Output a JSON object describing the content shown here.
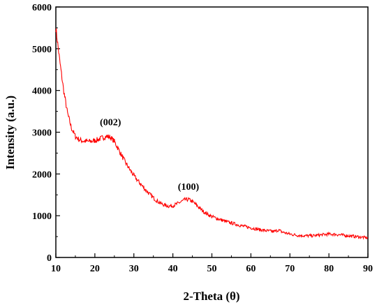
{
  "chart_data": {
    "type": "line",
    "title": "",
    "xlabel": "2-Theta (θ)",
    "ylabel": "Intensity (a.u.)",
    "xlim": [
      10,
      90
    ],
    "ylim": [
      0,
      6000
    ],
    "xticks": [
      10,
      20,
      30,
      40,
      50,
      60,
      70,
      80,
      90
    ],
    "yticks": [
      0,
      1000,
      2000,
      3000,
      4000,
      5000,
      6000
    ],
    "grid": false,
    "legend": "none",
    "series": [
      {
        "color": "#ff0000",
        "x": [
          10,
          11,
          12,
          13,
          14,
          15,
          16,
          17,
          18,
          19,
          20,
          21,
          22,
          23,
          24,
          25,
          26,
          27,
          28,
          29,
          30,
          31,
          32,
          33,
          34,
          35,
          36,
          37,
          38,
          39,
          40,
          41,
          42,
          43,
          44,
          45,
          46,
          47,
          48,
          49,
          50,
          52,
          54,
          56,
          58,
          60,
          62,
          64,
          66,
          67,
          68,
          70,
          72,
          74,
          76,
          78,
          80,
          82,
          84,
          86,
          88,
          90
        ],
        "y": [
          5500,
          4700,
          4000,
          3450,
          3100,
          2900,
          2820,
          2790,
          2780,
          2780,
          2800,
          2830,
          2870,
          2900,
          2880,
          2780,
          2600,
          2420,
          2250,
          2100,
          1960,
          1840,
          1730,
          1620,
          1520,
          1430,
          1350,
          1290,
          1250,
          1230,
          1240,
          1280,
          1330,
          1380,
          1390,
          1340,
          1260,
          1170,
          1090,
          1030,
          980,
          910,
          850,
          800,
          750,
          710,
          670,
          640,
          620,
          660,
          610,
          560,
          530,
          520,
          520,
          540,
          560,
          550,
          530,
          510,
          490,
          470
        ]
      }
    ],
    "annotations": [
      {
        "text": "(002)",
        "x": 24,
        "y": 3170
      },
      {
        "text": "(100)",
        "x": 44,
        "y": 1620
      }
    ]
  }
}
